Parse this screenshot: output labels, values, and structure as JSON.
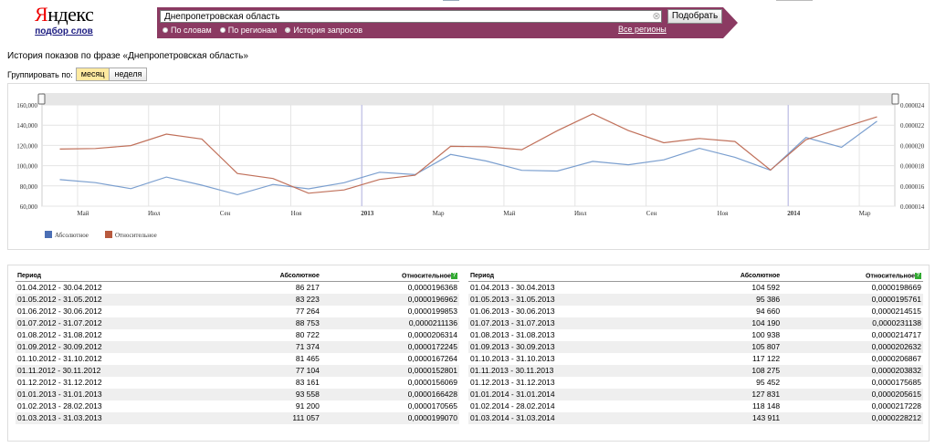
{
  "logo": {
    "first_letter": "Я",
    "rest": "ндекс",
    "subtitle": "подбор слов"
  },
  "search": {
    "value": "Днепропетровская область",
    "submit_label": "Подобрать",
    "modes": [
      {
        "label": "По словам",
        "selected": false
      },
      {
        "label": "По регионам",
        "selected": false
      },
      {
        "label": "История запросов",
        "selected": true
      }
    ],
    "regions_link": "Все регионы"
  },
  "page": {
    "title": "История показов по фразе «Днепропетровская область»",
    "group_label": "Группировать по:",
    "group_options": [
      {
        "label": "месяц",
        "active": true
      },
      {
        "label": "неделя",
        "active": false
      }
    ]
  },
  "colors": {
    "accent": "#8b3a62",
    "absolute": "#7b9fcf",
    "relative": "#c0705a"
  },
  "chart_data": {
    "type": "line",
    "x": [
      "2012-04",
      "2012-05",
      "2012-06",
      "2012-07",
      "2012-08",
      "2012-09",
      "2012-10",
      "2012-11",
      "2012-12",
      "2013-01",
      "2013-02",
      "2013-03",
      "2013-04",
      "2013-05",
      "2013-06",
      "2013-07",
      "2013-08",
      "2013-09",
      "2013-10",
      "2013-11",
      "2013-12",
      "2014-01",
      "2014-02",
      "2014-03"
    ],
    "x_ticks": [
      "Май",
      "Июл",
      "Сен",
      "Ноя",
      "2013",
      "Мар",
      "Май",
      "Июл",
      "Сен",
      "Ноя",
      "2014",
      "Мар"
    ],
    "y_left_ticks": [
      "160,000",
      "140,000",
      "120,000",
      "100,000",
      "80,000",
      "60,000"
    ],
    "y_right_ticks": [
      "0.000024",
      "0.000022",
      "0.000020",
      "0.000018",
      "0.000016",
      "0.000014"
    ],
    "ylim_left": [
      60000,
      160000
    ],
    "ylim_right": [
      1.4e-05,
      2.4e-05
    ],
    "series": [
      {
        "name": "Абсолютное",
        "axis": "left",
        "values": [
          86217,
          83223,
          77264,
          88753,
          80722,
          71374,
          81465,
          77104,
          83161,
          93558,
          91200,
          111057,
          104592,
          95386,
          94660,
          104190,
          100938,
          105807,
          117122,
          108275,
          95452,
          127831,
          118148,
          143911
        ]
      },
      {
        "name": "Относительное",
        "axis": "right",
        "values": [
          1.96368e-05,
          1.96962e-05,
          1.99853e-05,
          2.11136e-05,
          2.06314e-05,
          1.72245e-05,
          1.67264e-05,
          1.52801e-05,
          1.56069e-05,
          1.66428e-05,
          1.70565e-05,
          1.9907e-05,
          1.98669e-05,
          1.95761e-05,
          2.14515e-05,
          2.31138e-05,
          2.14717e-05,
          2.02632e-05,
          2.06867e-05,
          2.03832e-05,
          1.75685e-05,
          2.05615e-05,
          2.17228e-05,
          2.28212e-05
        ]
      }
    ]
  },
  "table": {
    "headers": {
      "period": "Период",
      "absolute": "Абсолютное",
      "relative": "Относительное"
    },
    "left": [
      [
        "01.04.2012 - 30.04.2012",
        "86 217",
        "0,0000196368"
      ],
      [
        "01.05.2012 - 31.05.2012",
        "83 223",
        "0,0000196962"
      ],
      [
        "01.06.2012 - 30.06.2012",
        "77 264",
        "0,0000199853"
      ],
      [
        "01.07.2012 - 31.07.2012",
        "88 753",
        "0,0000211136"
      ],
      [
        "01.08.2012 - 31.08.2012",
        "80 722",
        "0,0000206314"
      ],
      [
        "01.09.2012 - 30.09.2012",
        "71 374",
        "0,0000172245"
      ],
      [
        "01.10.2012 - 31.10.2012",
        "81 465",
        "0,0000167264"
      ],
      [
        "01.11.2012 - 30.11.2012",
        "77 104",
        "0,0000152801"
      ],
      [
        "01.12.2012 - 31.12.2012",
        "83 161",
        "0,0000156069"
      ],
      [
        "01.01.2013 - 31.01.2013",
        "93 558",
        "0,0000166428"
      ],
      [
        "01.02.2013 - 28.02.2013",
        "91 200",
        "0,0000170565"
      ],
      [
        "01.03.2013 - 31.03.2013",
        "111 057",
        "0,0000199070"
      ]
    ],
    "right": [
      [
        "01.04.2013 - 30.04.2013",
        "104 592",
        "0,0000198669"
      ],
      [
        "01.05.2013 - 31.05.2013",
        "95 386",
        "0,0000195761"
      ],
      [
        "01.06.2013 - 30.06.2013",
        "94 660",
        "0,0000214515"
      ],
      [
        "01.07.2013 - 31.07.2013",
        "104 190",
        "0,0000231138"
      ],
      [
        "01.08.2013 - 31.08.2013",
        "100 938",
        "0,0000214717"
      ],
      [
        "01.09.2013 - 30.09.2013",
        "105 807",
        "0,0000202632"
      ],
      [
        "01.10.2013 - 31.10.2013",
        "117 122",
        "0,0000206867"
      ],
      [
        "01.11.2013 - 30.11.2013",
        "108 275",
        "0,0000203832"
      ],
      [
        "01.12.2013 - 31.12.2013",
        "95 452",
        "0,0000175685"
      ],
      [
        "01.01.2014 - 31.01.2014",
        "127 831",
        "0,0000205615"
      ],
      [
        "01.02.2014 - 28.02.2014",
        "118 148",
        "0,0000217228"
      ],
      [
        "01.03.2014 - 31.03.2014",
        "143 911",
        "0,0000228212"
      ]
    ]
  }
}
